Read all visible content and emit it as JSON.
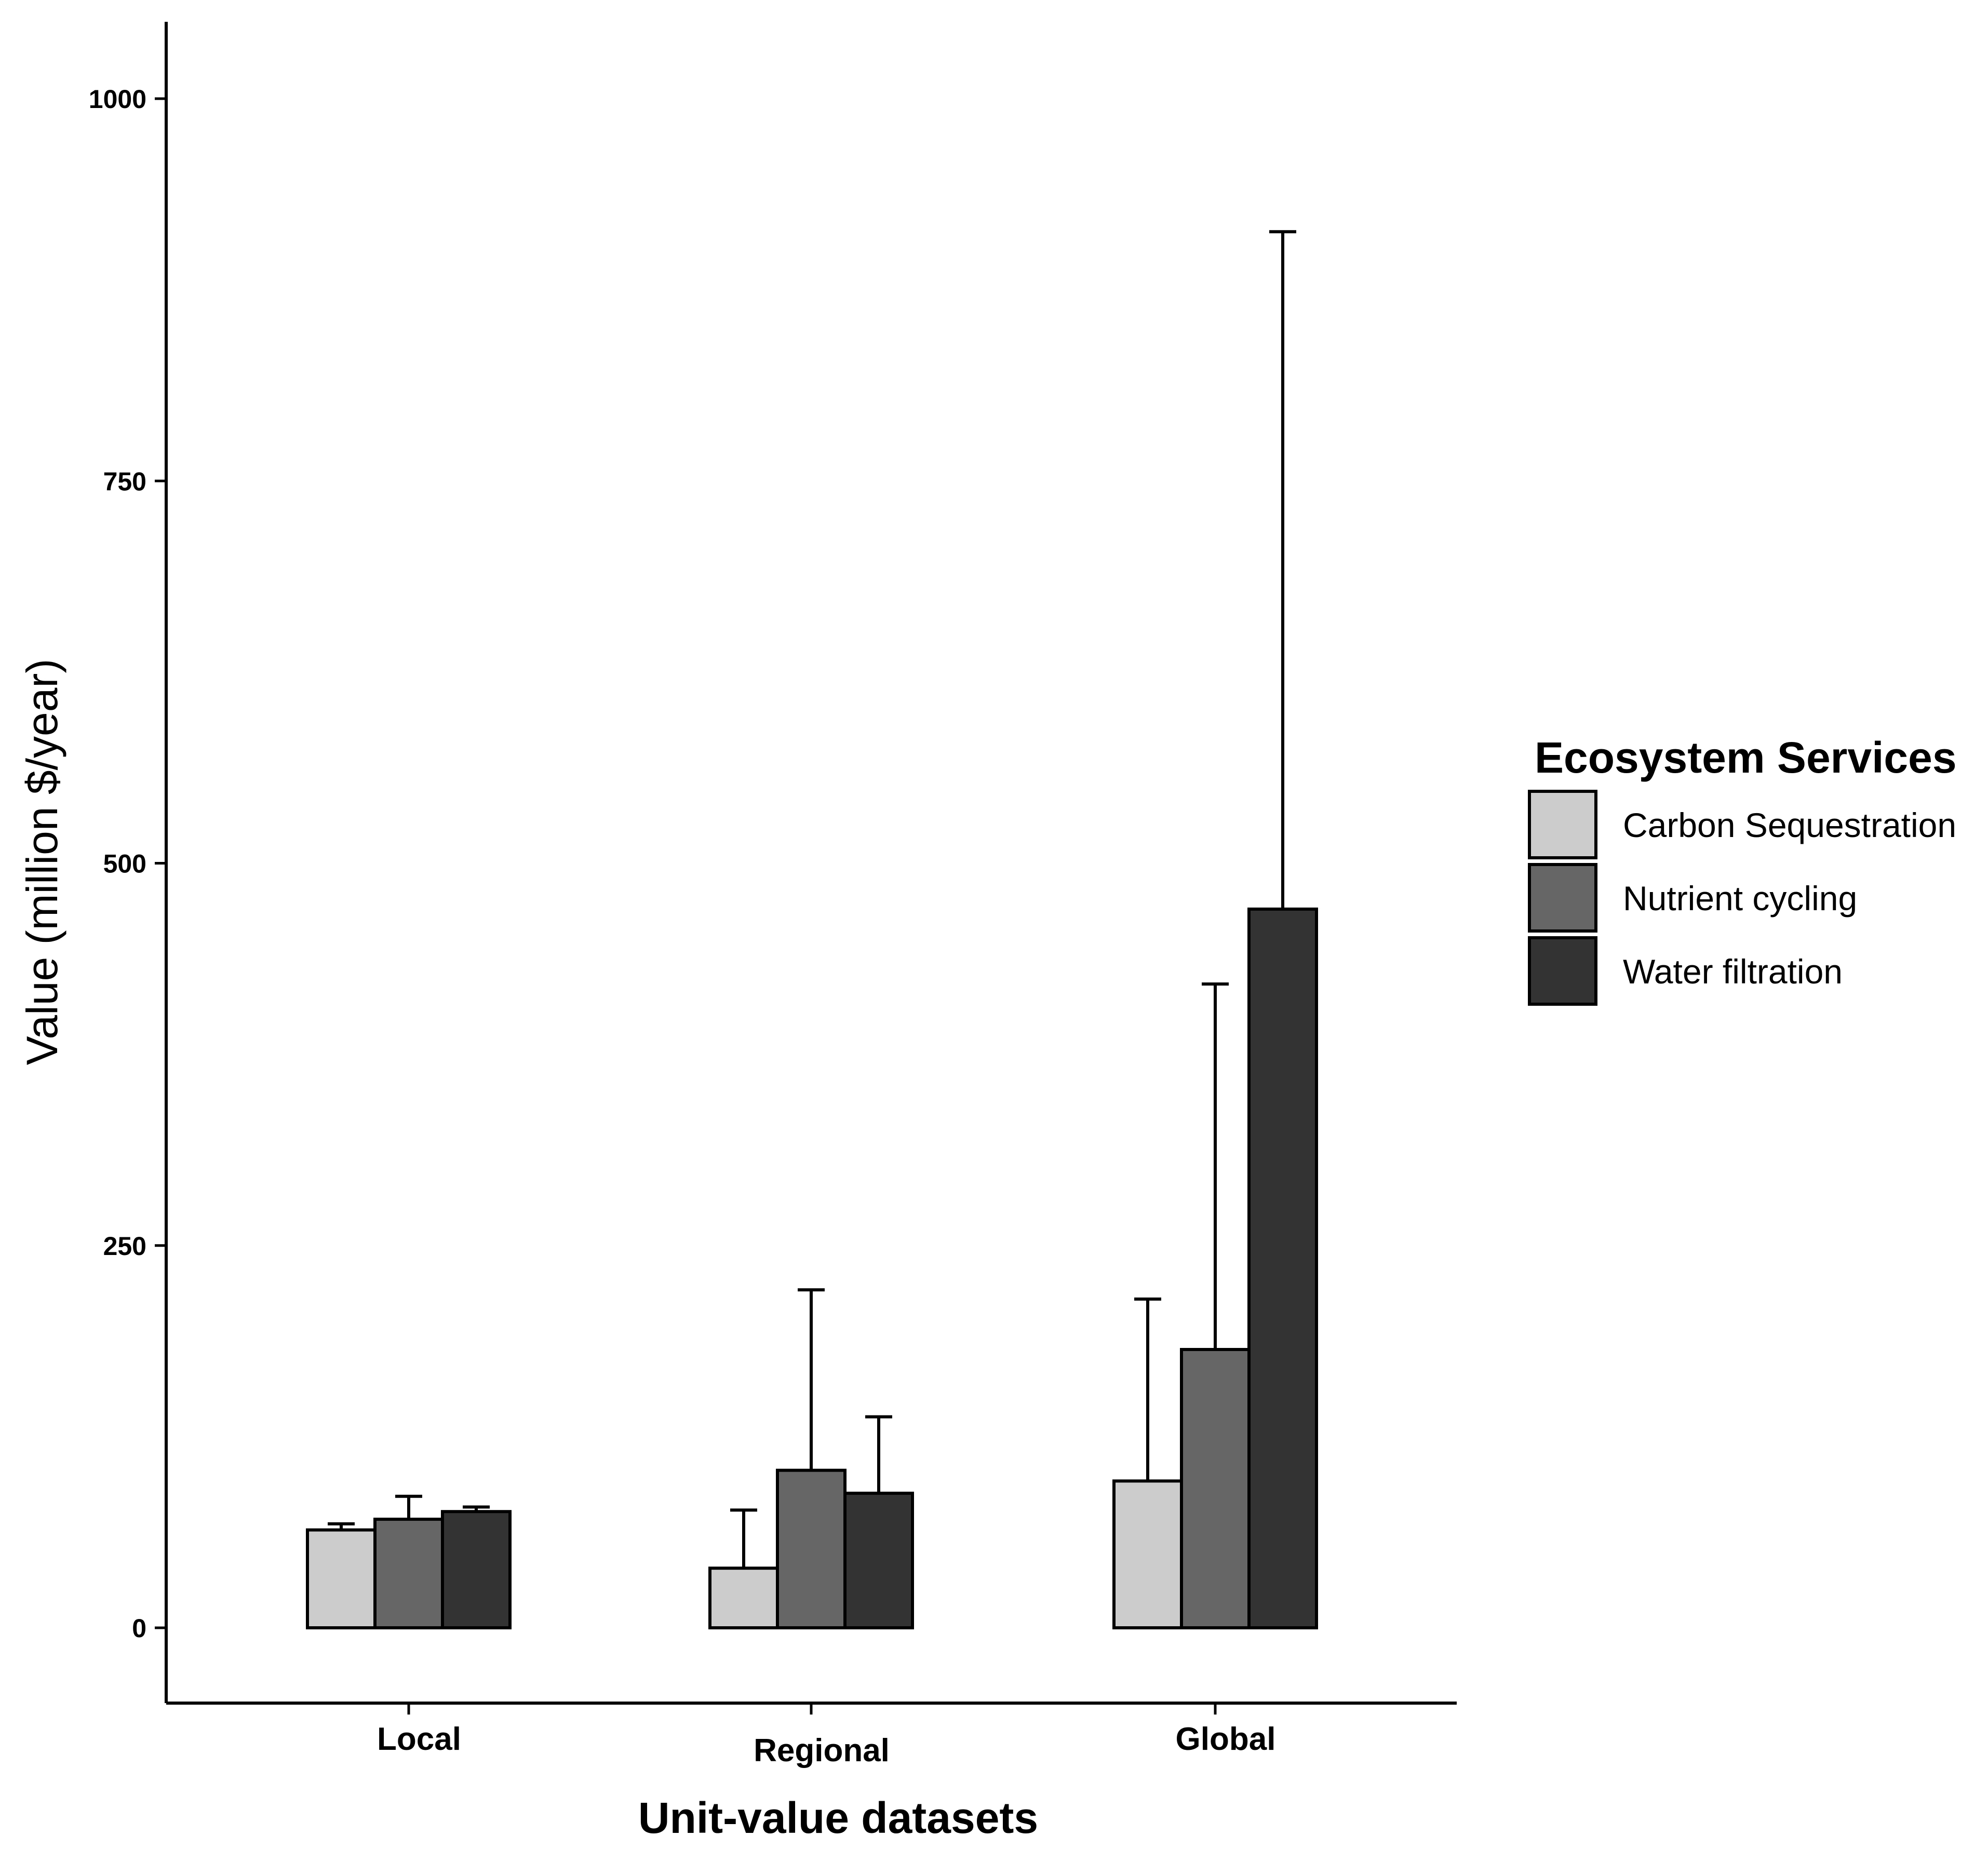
{
  "chart_data": {
    "type": "bar",
    "title": "",
    "xlabel": "Unit-value datasets",
    "ylabel": "Value (million $/year)",
    "ylim": [
      -50,
      1050
    ],
    "yticks": [
      0,
      250,
      500,
      750,
      1000
    ],
    "ytick_labels": [
      "0",
      "250",
      "500",
      "750",
      "1000"
    ],
    "grid": false,
    "categories": [
      "Local",
      "Regional",
      "Global"
    ],
    "legend": {
      "title": "Ecosystem Services",
      "position": "right"
    },
    "series": [
      {
        "name": "Carbon Sequestration",
        "color": "#cccccc",
        "values": [
          64,
          39,
          96
        ],
        "error_upper": [
          68,
          77,
          215
        ]
      },
      {
        "name": "Nutrient cycling",
        "color": "#666666",
        "values": [
          71,
          103,
          182
        ],
        "error_upper": [
          86,
          221,
          421
        ]
      },
      {
        "name": "Water filtration",
        "color": "#333333",
        "values": [
          76,
          88,
          470
        ],
        "error_upper": [
          79,
          138,
          913
        ]
      }
    ]
  }
}
